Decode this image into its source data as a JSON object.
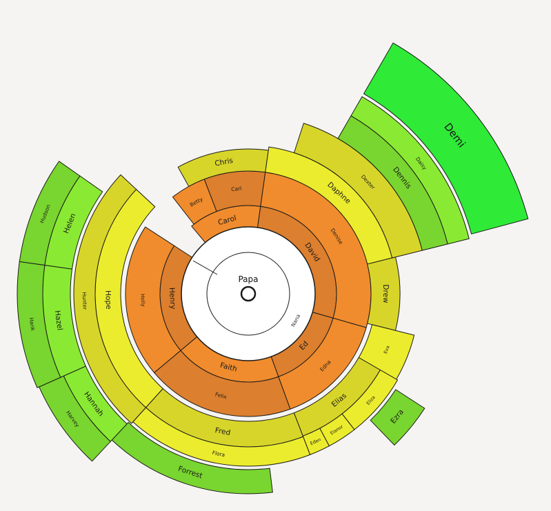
{
  "diagram": {
    "type": "sunburst",
    "root": {
      "label": "Papa",
      "inner_label": "Nana"
    },
    "colors": {
      "background": "#f5f4f2",
      "stroke": "#1a1a1a",
      "orange": "#f08c2d",
      "orange_dark": "#dc7f2e",
      "yellow": "#ecec2e",
      "yellow_dark": "#d8d52a",
      "green_light": "#8aea33",
      "green_mid": "#79d52f",
      "green_bright": "#2fea37"
    },
    "segments": [
      {
        "name": "seg-carol",
        "label": "Carol",
        "color": "orange",
        "depth": 1,
        "r0": 93,
        "r1": 128,
        "a0": 320,
        "a1": 8,
        "size": "md"
      },
      {
        "name": "seg-david",
        "label": "David",
        "color": "orange_dark",
        "depth": 1,
        "r0": 93,
        "r1": 128,
        "a0": 8,
        "a1": 106,
        "size": "md"
      },
      {
        "name": "seg-ed",
        "label": "Ed",
        "color": "orange_dark",
        "depth": 1,
        "r0": 93,
        "r1": 128,
        "a0": 106,
        "a1": 160,
        "size": "md"
      },
      {
        "name": "seg-faith",
        "label": "Faith",
        "color": "orange",
        "depth": 1,
        "r0": 93,
        "r1": 128,
        "a0": 160,
        "a1": 230,
        "size": "md"
      },
      {
        "name": "seg-henry",
        "label": "Henry",
        "color": "orange_dark",
        "depth": 1,
        "r0": 93,
        "r1": 128,
        "a0": 230,
        "a1": 303,
        "size": "md"
      },
      {
        "name": "seg-betty",
        "label": "Betty",
        "color": "orange",
        "depth": 2,
        "r0": 128,
        "r1": 178,
        "a0": 322,
        "a1": 339,
        "size": "sm"
      },
      {
        "name": "seg-carl",
        "label": "Carl",
        "color": "orange_dark",
        "depth": 2,
        "r0": 128,
        "r1": 178,
        "a0": 339,
        "a1": 8,
        "size": "sm"
      },
      {
        "name": "seg-denise",
        "label": "Denise",
        "color": "orange",
        "depth": 2,
        "r0": 128,
        "r1": 178,
        "a0": 8,
        "a1": 106,
        "size": "sm"
      },
      {
        "name": "seg-edna",
        "label": "Edna",
        "color": "orange",
        "depth": 2,
        "r0": 128,
        "r1": 178,
        "a0": 106,
        "a1": 160,
        "size": "sm"
      },
      {
        "name": "seg-felix",
        "label": "Felix",
        "color": "orange_dark",
        "depth": 2,
        "r0": 128,
        "r1": 178,
        "a0": 160,
        "a1": 230,
        "size": "sm"
      },
      {
        "name": "seg-holly",
        "label": "Holly",
        "color": "orange",
        "depth": 2,
        "r0": 128,
        "r1": 178,
        "a0": 230,
        "a1": 303,
        "size": "sm"
      },
      {
        "name": "seg-chris",
        "label": "Chris",
        "color": "yellow_dark",
        "depth": 3,
        "r0": 178,
        "r1": 210,
        "a0": 331,
        "a1": 8,
        "size": "md"
      },
      {
        "name": "seg-daphne",
        "label": "Daphne",
        "color": "yellow",
        "depth": 3,
        "r0": 178,
        "r1": 215,
        "a0": 8,
        "a1": 76,
        "size": "md"
      },
      {
        "name": "seg-drew",
        "label": "Drew",
        "color": "yellow_dark",
        "depth": 3,
        "r0": 178,
        "r1": 220,
        "a0": 76,
        "a1": 104,
        "size": "md"
      },
      {
        "name": "seg-eva",
        "label": "Eva",
        "color": "yellow",
        "depth": 3,
        "r0": 185,
        "r1": 248,
        "a0": 104,
        "a1": 120,
        "size": "xs"
      },
      {
        "name": "seg-elias",
        "label": "Elias",
        "color": "yellow_dark",
        "depth": 3,
        "r0": 185,
        "r1": 221,
        "a0": 120,
        "a1": 159,
        "size": "md"
      },
      {
        "name": "seg-eliza",
        "label": "Eliza",
        "color": "yellow",
        "depth": 3,
        "r0": 221,
        "r1": 250,
        "a0": 120,
        "a1": 142,
        "size": "xs"
      },
      {
        "name": "seg-elanor",
        "label": "Elanor",
        "color": "yellow",
        "depth": 3,
        "r0": 221,
        "r1": 250,
        "a0": 142,
        "a1": 152,
        "size": "xs"
      },
      {
        "name": "seg-eden",
        "label": "Eden",
        "color": "yellow",
        "depth": 3,
        "r0": 221,
        "r1": 250,
        "a0": 152,
        "a1": 159,
        "size": "xs"
      },
      {
        "name": "seg-fred",
        "label": "Fred",
        "color": "yellow_dark",
        "depth": 3,
        "r0": 185,
        "r1": 222,
        "a0": 159,
        "a1": 222,
        "size": "md"
      },
      {
        "name": "seg-flora",
        "label": "Flora",
        "color": "yellow",
        "depth": 3,
        "r0": 222,
        "r1": 250,
        "a0": 159,
        "a1": 222,
        "size": "sm"
      },
      {
        "name": "seg-hope",
        "label": "Hope",
        "color": "yellow",
        "depth": 3,
        "r0": 185,
        "r1": 222,
        "a0": 222,
        "a1": 313,
        "size": "md"
      },
      {
        "name": "seg-hunter",
        "label": "Hunter",
        "color": "yellow_dark",
        "depth": 3,
        "r0": 222,
        "r1": 253,
        "a0": 222,
        "a1": 313,
        "size": "sm"
      },
      {
        "name": "seg-dexter",
        "label": "Dexter",
        "color": "yellow_dark",
        "depth": 4,
        "r0": 215,
        "r1": 260,
        "a0": 18,
        "a1": 76,
        "size": "sm"
      },
      {
        "name": "seg-dennis",
        "label": "Dennis",
        "color": "green_mid",
        "depth": 4,
        "r0": 260,
        "r1": 298,
        "a0": 30,
        "a1": 76,
        "size": "md"
      },
      {
        "name": "seg-daisy",
        "label": "Daisy",
        "color": "green_light",
        "depth": 4,
        "r0": 298,
        "r1": 330,
        "a0": 30,
        "a1": 76,
        "size": "sm"
      },
      {
        "name": "seg-demi",
        "label": "Demi",
        "color": "green_bright",
        "depth": 4,
        "r0": 335,
        "r1": 420,
        "a0": 30,
        "a1": 75,
        "size": "lg"
      },
      {
        "name": "seg-ezra",
        "label": "Ezra",
        "color": "green_mid",
        "depth": 4,
        "r0": 255,
        "r1": 305,
        "a0": 123,
        "a1": 136,
        "size": "md"
      },
      {
        "name": "seg-forrest",
        "label": "Forrest",
        "color": "green_mid",
        "depth": 4,
        "r0": 255,
        "r1": 290,
        "a0": 173,
        "a1": 223,
        "size": "md"
      },
      {
        "name": "seg-hannah",
        "label": "Hannah",
        "color": "green_light",
        "depth": 4,
        "r0": 258,
        "r1": 293,
        "a0": 223,
        "a1": 246,
        "size": "md"
      },
      {
        "name": "seg-harvey",
        "label": "Harvey",
        "color": "green_mid",
        "depth": 4,
        "r0": 293,
        "r1": 332,
        "a0": 223,
        "a1": 246,
        "size": "sm"
      },
      {
        "name": "seg-hazel",
        "label": "Hazel",
        "color": "green_light",
        "depth": 4,
        "r0": 258,
        "r1": 298,
        "a0": 246,
        "a1": 278,
        "size": "md"
      },
      {
        "name": "seg-hank",
        "label": "Hank",
        "color": "green_mid",
        "depth": 4,
        "r0": 298,
        "r1": 335,
        "a0": 246,
        "a1": 278,
        "size": "sm"
      },
      {
        "name": "seg-helen",
        "label": "Helen",
        "color": "green_light",
        "depth": 4,
        "r0": 258,
        "r1": 298,
        "a0": 278,
        "a1": 305,
        "size": "md"
      },
      {
        "name": "seg-hudson",
        "label": "Hudson",
        "color": "green_mid",
        "depth": 4,
        "r0": 298,
        "r1": 335,
        "a0": 278,
        "a1": 305,
        "size": "sm"
      }
    ]
  }
}
